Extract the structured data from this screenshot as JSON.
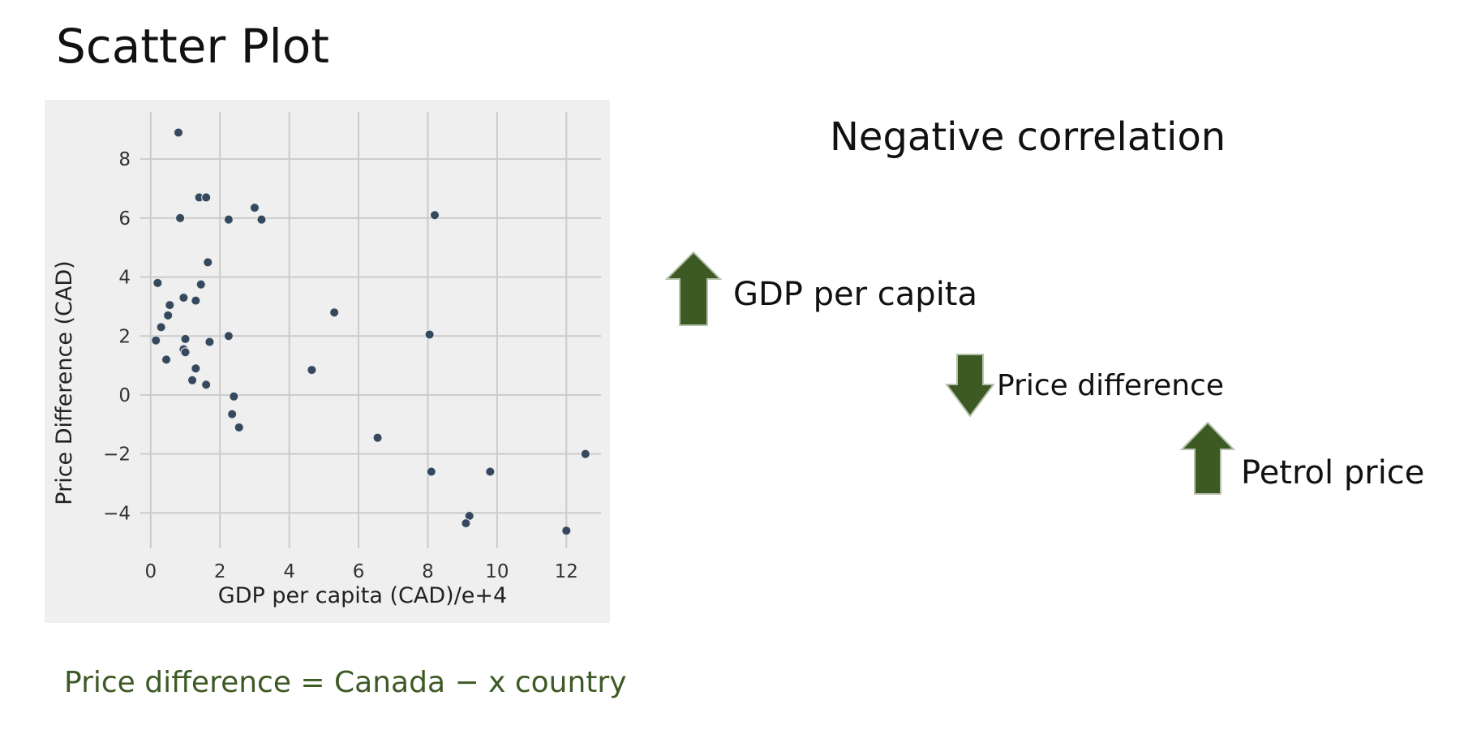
{
  "page": {
    "title": "Scatter Plot"
  },
  "chart_data": {
    "type": "scatter",
    "title": "",
    "xlabel": "GDP per capita (CAD)/e+4",
    "ylabel": "Price Difference (CAD)",
    "xlim": [
      -0.3,
      13
    ],
    "ylim": [
      -5.2,
      9.6
    ],
    "x_ticks": [
      0,
      2,
      4,
      6,
      8,
      10,
      12
    ],
    "y_ticks": [
      -4,
      -2,
      0,
      2,
      4,
      6,
      8
    ],
    "x_tick_labels": [
      "0",
      "2",
      "4",
      "6",
      "8",
      "10",
      "12"
    ],
    "y_tick_labels": [
      "−4",
      "−2",
      "0",
      "2",
      "4",
      "6",
      "8"
    ],
    "grid": true,
    "points": [
      {
        "x": 0.8,
        "y": 8.9
      },
      {
        "x": 1.4,
        "y": 6.7
      },
      {
        "x": 1.6,
        "y": 6.7
      },
      {
        "x": 0.85,
        "y": 6.0
      },
      {
        "x": 2.25,
        "y": 5.95
      },
      {
        "x": 3.0,
        "y": 6.35
      },
      {
        "x": 3.2,
        "y": 5.95
      },
      {
        "x": 8.2,
        "y": 6.1
      },
      {
        "x": 1.65,
        "y": 4.5
      },
      {
        "x": 0.2,
        "y": 3.8
      },
      {
        "x": 1.45,
        "y": 3.75
      },
      {
        "x": 0.95,
        "y": 3.3
      },
      {
        "x": 1.3,
        "y": 3.2
      },
      {
        "x": 0.55,
        "y": 3.05
      },
      {
        "x": 0.5,
        "y": 2.7
      },
      {
        "x": 5.3,
        "y": 2.8
      },
      {
        "x": 0.3,
        "y": 2.3
      },
      {
        "x": 0.15,
        "y": 1.85
      },
      {
        "x": 1.0,
        "y": 1.9
      },
      {
        "x": 2.25,
        "y": 2.0
      },
      {
        "x": 8.05,
        "y": 2.05
      },
      {
        "x": 1.7,
        "y": 1.8
      },
      {
        "x": 0.95,
        "y": 1.55
      },
      {
        "x": 1.0,
        "y": 1.45
      },
      {
        "x": 0.45,
        "y": 1.2
      },
      {
        "x": 1.3,
        "y": 0.9
      },
      {
        "x": 4.65,
        "y": 0.85
      },
      {
        "x": 1.2,
        "y": 0.5
      },
      {
        "x": 1.6,
        "y": 0.35
      },
      {
        "x": 2.4,
        "y": -0.05
      },
      {
        "x": 2.35,
        "y": -0.65
      },
      {
        "x": 2.55,
        "y": -1.1
      },
      {
        "x": 6.55,
        "y": -1.45
      },
      {
        "x": 12.55,
        "y": -2.0
      },
      {
        "x": 8.1,
        "y": -2.6
      },
      {
        "x": 9.8,
        "y": -2.6
      },
      {
        "x": 9.2,
        "y": -4.1
      },
      {
        "x": 9.1,
        "y": -4.35
      },
      {
        "x": 12.0,
        "y": -4.6
      }
    ]
  },
  "correlation": {
    "heading": "Negative correlation",
    "indicators": [
      {
        "label": "GDP per capita",
        "direction": "up"
      },
      {
        "label": "Price difference",
        "direction": "down"
      },
      {
        "label": "Petrol price",
        "direction": "up"
      }
    ],
    "arrow_color": "#3d5a25"
  },
  "footnote": {
    "text": "Price difference = Canada − x country",
    "color": "#3d5a25"
  }
}
